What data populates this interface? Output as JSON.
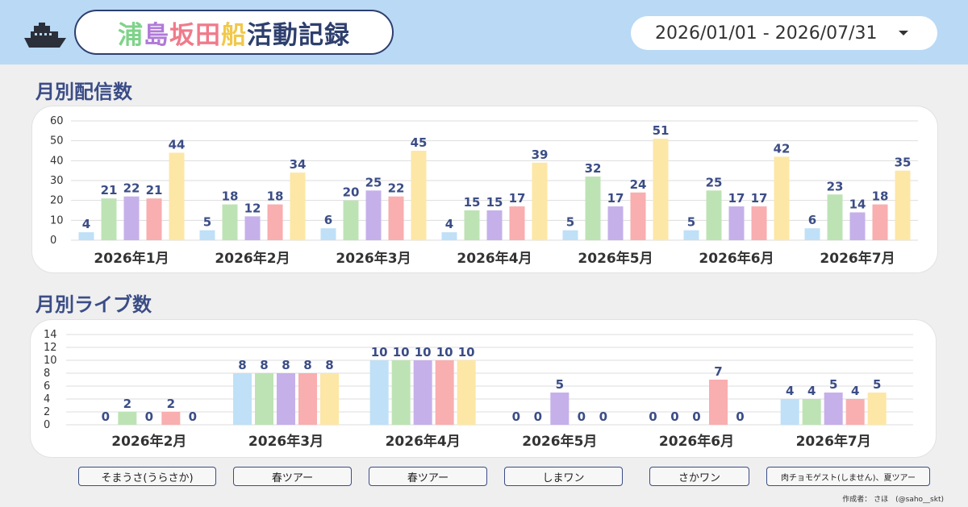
{
  "header": {
    "title_chars": [
      "浦",
      "島",
      "坂",
      "田",
      "船",
      "活",
      "動",
      "記",
      "録"
    ],
    "title_colors": [
      "#7fd38a",
      "#b07ad8",
      "#f07a8a",
      "#f07a8a",
      "#f2c84a",
      "#2e3f6e",
      "#2e3f6e",
      "#2e3f6e",
      "#2e3f6e"
    ],
    "date_range": "2026/01/01 - 2026/07/31"
  },
  "icons": {
    "logo": "ship-icon",
    "date_dropdown": "caret-down-icon"
  },
  "sections": {
    "monthly_streams": "月別配信数",
    "monthly_lives": "月別ライブ数"
  },
  "colors": {
    "series": [
      "#bfe0f7",
      "#bde3b4",
      "#c5b0ea",
      "#f9aeb0",
      "#fde7a6"
    ],
    "label": "#3b4d86",
    "axis_text": "#333333",
    "grid": "#dddddd"
  },
  "chart_data": [
    {
      "type": "bar",
      "title": "月別配信数",
      "categories": [
        "2026年1月",
        "2026年2月",
        "2026年3月",
        "2026年4月",
        "2026年5月",
        "2026年6月",
        "2026年7月"
      ],
      "ylim": [
        0,
        60
      ],
      "yticks": [
        0,
        10,
        20,
        30,
        40,
        50,
        60
      ],
      "grid": true,
      "series": [
        {
          "values": [
            4,
            5,
            6,
            4,
            5,
            5,
            6
          ]
        },
        {
          "values": [
            21,
            18,
            20,
            15,
            32,
            25,
            23
          ]
        },
        {
          "values": [
            22,
            12,
            25,
            15,
            17,
            17,
            14
          ]
        },
        {
          "values": [
            21,
            18,
            22,
            17,
            24,
            17,
            18
          ]
        },
        {
          "values": [
            44,
            34,
            45,
            39,
            51,
            42,
            35
          ]
        }
      ]
    },
    {
      "type": "bar",
      "title": "月別ライブ数",
      "categories": [
        "2026年2月",
        "2026年3月",
        "2026年4月",
        "2026年5月",
        "2026年6月",
        "2026年7月"
      ],
      "ylim": [
        0,
        14
      ],
      "yticks": [
        0,
        2,
        4,
        6,
        8,
        10,
        12,
        14
      ],
      "grid": true,
      "series": [
        {
          "values": [
            0,
            8,
            10,
            0,
            0,
            4
          ]
        },
        {
          "values": [
            2,
            8,
            10,
            0,
            0,
            4
          ]
        },
        {
          "values": [
            0,
            8,
            10,
            5,
            0,
            5
          ]
        },
        {
          "values": [
            2,
            8,
            10,
            0,
            7,
            4
          ]
        },
        {
          "values": [
            0,
            8,
            10,
            0,
            0,
            5
          ]
        }
      ]
    }
  ],
  "legend_buttons": [
    "そまうさ(うらさか)",
    "春ツアー",
    "春ツアー",
    "しまワン",
    "さかワン",
    "肉チョモゲスト(しません)、夏ツアー"
  ],
  "footer": {
    "credit": "作成者： さほ　(@saho__skt)"
  }
}
